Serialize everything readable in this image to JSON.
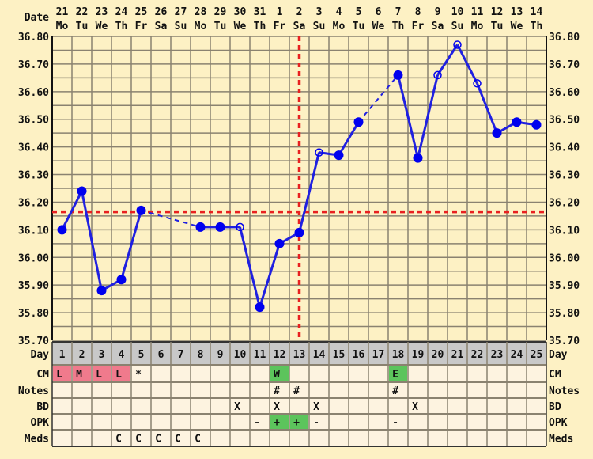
{
  "chart_data": {
    "type": "line",
    "xlabel": "Day",
    "date_label": "Date",
    "ylim": [
      35.7,
      36.8
    ],
    "y_ticks": [
      "36.80",
      "36.70",
      "36.60",
      "36.50",
      "36.40",
      "36.30",
      "36.20",
      "36.10",
      "36.00",
      "35.90",
      "35.80",
      "35.70"
    ],
    "grid": true,
    "days": [
      1,
      2,
      3,
      4,
      5,
      6,
      7,
      8,
      9,
      10,
      11,
      12,
      13,
      14,
      15,
      16,
      17,
      18,
      19,
      20,
      21,
      22,
      23,
      24,
      25
    ],
    "dates": [
      "21",
      "22",
      "23",
      "24",
      "25",
      "26",
      "27",
      "28",
      "29",
      "30",
      "31",
      "1",
      "2",
      "3",
      "4",
      "5",
      "6",
      "7",
      "8",
      "9",
      "10",
      "11",
      "12",
      "13",
      "14"
    ],
    "weekdays": [
      "Mo",
      "Tu",
      "We",
      "Th",
      "Fr",
      "Sa",
      "Su",
      "Mo",
      "Tu",
      "We",
      "Th",
      "Fr",
      "Sa",
      "Su",
      "Mo",
      "Tu",
      "We",
      "Th",
      "Fr",
      "Sa",
      "Su",
      "Mo",
      "Tu",
      "We",
      "Th"
    ],
    "temperatures": [
      36.1,
      36.24,
      35.88,
      35.92,
      36.17,
      null,
      null,
      36.11,
      36.11,
      36.11,
      35.82,
      36.05,
      36.09,
      36.38,
      36.37,
      36.49,
      null,
      36.66,
      36.36,
      36.66,
      36.77,
      36.63,
      36.45,
      36.49,
      36.48
    ],
    "open_markers": [
      10,
      14,
      20,
      21,
      22
    ],
    "coverline": 36.165,
    "ovulation_day": 13,
    "colors": {
      "line": "#2020e0",
      "marker": "#0000ee",
      "coverline": "#e82020",
      "grid": "#8a8270",
      "plot_bg": "#fdf1c4",
      "cell_bg": "#fdf3e0",
      "day_row_bg": "#c8c8c8",
      "pink": "#f07a8c",
      "green": "#5cc45c"
    }
  },
  "table": {
    "rows": [
      {
        "label": "CM",
        "cells": {
          "1": "L",
          "2": "M",
          "3": "L",
          "4": "L",
          "5": "*",
          "12": "W",
          "18": "E"
        },
        "highlights": {
          "1": "pink",
          "2": "pink",
          "3": "pink",
          "4": "pink",
          "12": "green",
          "18": "green"
        }
      },
      {
        "label": "Notes",
        "cells": {
          "12": "#",
          "13": "#",
          "18": "#"
        },
        "highlights": {}
      },
      {
        "label": "BD",
        "cells": {
          "10": "X",
          "12": "X",
          "14": "X",
          "19": "X"
        },
        "highlights": {}
      },
      {
        "label": "OPK",
        "cells": {
          "11": "-",
          "12": "+",
          "13": "+",
          "14": "-",
          "18": "-"
        },
        "highlights": {
          "12": "green",
          "13": "green"
        }
      },
      {
        "label": "Meds",
        "cells": {
          "4": "C",
          "5": "C",
          "6": "C",
          "7": "C",
          "8": "C"
        },
        "highlights": {}
      }
    ]
  }
}
